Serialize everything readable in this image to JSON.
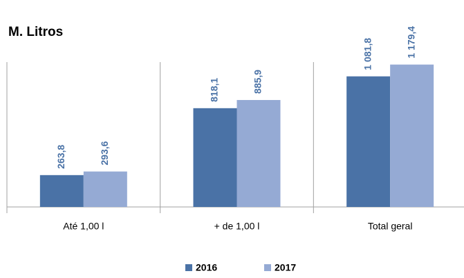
{
  "chart_data": {
    "type": "bar",
    "title": "M. Litros",
    "categories": [
      "Até 1,00 l",
      "+ de 1,00 l",
      "Total geral"
    ],
    "series": [
      {
        "name": "2016",
        "color": "#4a72a6",
        "values": [
          263.8,
          818.1,
          1081.8
        ],
        "value_labels": [
          "263,8",
          "818,1",
          "1 081,8"
        ]
      },
      {
        "name": "2017",
        "color": "#95aad4",
        "values": [
          293.6,
          885.9,
          1179.4
        ],
        "value_labels": [
          "293,6",
          "885,9",
          "1 179,4"
        ]
      }
    ],
    "ylim": [
      0,
      1200
    ]
  }
}
